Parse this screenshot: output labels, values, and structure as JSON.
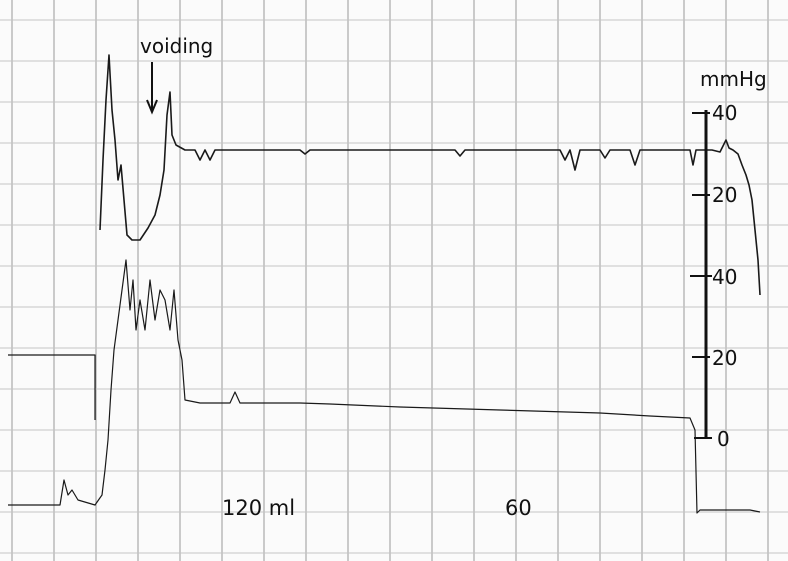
{
  "chart_data": {
    "type": "line",
    "title": "",
    "annotation": "voiding",
    "scale": {
      "unit": "mmHg",
      "upper_ticks": [
        "40",
        "20"
      ],
      "lower_ticks": [
        "40",
        "20",
        "0"
      ]
    },
    "volume_labels": [
      "120 ml",
      "60"
    ],
    "grid": true,
    "series": [
      {
        "trace": "upper",
        "points": [
          [
            100,
            230
          ],
          [
            103,
            160
          ],
          [
            106,
            100
          ],
          [
            109,
            55
          ],
          [
            112,
            110
          ],
          [
            115,
            140
          ],
          [
            118,
            180
          ],
          [
            121,
            165
          ],
          [
            124,
            200
          ],
          [
            127,
            235
          ],
          [
            132,
            240
          ],
          [
            140,
            240
          ],
          [
            148,
            228
          ],
          [
            155,
            215
          ],
          [
            160,
            195
          ],
          [
            164,
            170
          ],
          [
            167,
            115
          ],
          [
            170,
            92
          ],
          [
            172,
            135
          ],
          [
            176,
            145
          ],
          [
            185,
            150
          ],
          [
            195,
            150
          ],
          [
            200,
            160
          ],
          [
            205,
            150
          ],
          [
            210,
            160
          ],
          [
            215,
            150
          ],
          [
            300,
            150
          ],
          [
            305,
            154
          ],
          [
            310,
            150
          ],
          [
            455,
            150
          ],
          [
            460,
            156
          ],
          [
            465,
            150
          ],
          [
            560,
            150
          ],
          [
            565,
            160
          ],
          [
            570,
            150
          ],
          [
            575,
            170
          ],
          [
            580,
            150
          ],
          [
            600,
            150
          ],
          [
            605,
            158
          ],
          [
            610,
            150
          ],
          [
            630,
            150
          ],
          [
            635,
            165
          ],
          [
            640,
            150
          ],
          [
            690,
            150
          ],
          [
            693,
            165
          ],
          [
            696,
            150
          ],
          [
            700,
            150
          ],
          [
            712,
            150
          ],
          [
            720,
            152
          ],
          [
            726,
            140
          ],
          [
            729,
            148
          ],
          [
            733,
            150
          ],
          [
            738,
            154
          ],
          [
            742,
            165
          ],
          [
            746,
            175
          ],
          [
            749,
            185
          ],
          [
            752,
            200
          ],
          [
            755,
            230
          ],
          [
            758,
            260
          ],
          [
            760,
            295
          ]
        ]
      },
      {
        "trace": "lower",
        "points": [
          [
            8,
            505
          ],
          [
            60,
            505
          ],
          [
            64,
            480
          ],
          [
            68,
            495
          ],
          [
            72,
            490
          ],
          [
            78,
            500
          ],
          [
            95,
            505
          ],
          [
            102,
            495
          ],
          [
            105,
            470
          ],
          [
            108,
            440
          ],
          [
            111,
            390
          ],
          [
            114,
            350
          ],
          [
            118,
            320
          ],
          [
            122,
            290
          ],
          [
            126,
            260
          ],
          [
            130,
            310
          ],
          [
            133,
            280
          ],
          [
            136,
            330
          ],
          [
            140,
            300
          ],
          [
            145,
            330
          ],
          [
            150,
            280
          ],
          [
            155,
            320
          ],
          [
            160,
            290
          ],
          [
            165,
            300
          ],
          [
            170,
            330
          ],
          [
            174,
            290
          ],
          [
            178,
            340
          ],
          [
            182,
            360
          ],
          [
            185,
            400
          ],
          [
            200,
            403
          ],
          [
            230,
            403
          ],
          [
            235,
            392
          ],
          [
            240,
            403
          ],
          [
            300,
            403
          ],
          [
            330,
            404
          ],
          [
            400,
            407
          ],
          [
            500,
            410
          ],
          [
            600,
            413
          ],
          [
            650,
            416
          ],
          [
            690,
            418
          ],
          [
            695,
            430
          ],
          [
            697,
            513
          ],
          [
            700,
            510
          ],
          [
            750,
            510
          ],
          [
            760,
            512
          ]
        ]
      },
      {
        "trace": "left baseline",
        "points": [
          [
            8,
            355
          ],
          [
            95,
            355
          ],
          [
            95,
            420
          ]
        ]
      }
    ]
  }
}
